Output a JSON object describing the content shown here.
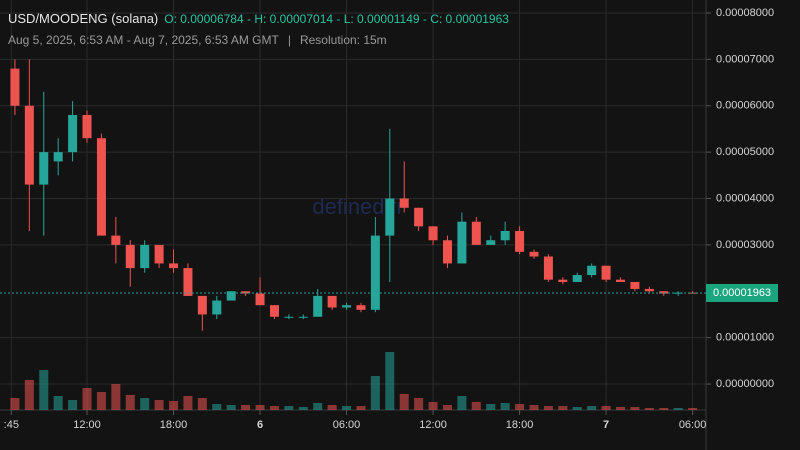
{
  "chart_data": {
    "type": "candlestick",
    "title": "USD/MOODENG (solana)",
    "ohlc_summary": "O: 0.00006784 - H: 0.00007014 - L: 0.00001149 - C: 0.00001963",
    "subtitle": "Aug 5, 2025, 6:53 AM - Aug 7, 2025, 6:53 AM GMT",
    "separator": "|",
    "resolution": "Resolution: 15m",
    "watermark": "defined.fi",
    "up_color": "#26a69a",
    "down_color": "#ef5350",
    "grid": true,
    "xlim": [
      6.52,
      54.93
    ],
    "xticks": [
      {
        "value": 6.75,
        "label": ":45"
      },
      {
        "value": 12,
        "label": "12:00"
      },
      {
        "value": 18,
        "label": "18:00"
      },
      {
        "value": 24,
        "label": "6"
      },
      {
        "value": 30,
        "label": "06:00"
      },
      {
        "value": 36,
        "label": "12:00"
      },
      {
        "value": 42,
        "label": "18:00"
      },
      {
        "value": 48,
        "label": "7"
      },
      {
        "value": 54,
        "label": "06:00"
      }
    ],
    "ylim": [
      -5.6e-06,
      8.28e-05
    ],
    "yticks": [
      {
        "value": 8e-05,
        "label": "0.00008000"
      },
      {
        "value": 7e-05,
        "label": "0.00007000"
      },
      {
        "value": 6e-05,
        "label": "0.00006000"
      },
      {
        "value": 5e-05,
        "label": "0.00005000"
      },
      {
        "value": 4e-05,
        "label": "0.00004000"
      },
      {
        "value": 3e-05,
        "label": "0.00003000"
      },
      {
        "value": 1e-05,
        "label": "0.00001000"
      },
      {
        "value": 0,
        "label": "0.00000000"
      }
    ],
    "last_price": {
      "value": 1.963e-05,
      "label": "0.00001963"
    },
    "x": [
      7,
      8,
      9,
      10,
      11,
      12,
      13,
      14,
      15,
      16,
      17,
      18,
      19,
      20,
      21,
      22,
      23,
      24,
      25,
      26,
      27,
      28,
      29,
      30,
      31,
      32,
      33,
      34,
      35,
      36,
      37,
      38,
      39,
      40,
      41,
      42,
      43,
      44,
      45,
      46,
      47,
      48,
      49,
      50,
      51,
      52,
      53,
      54
    ],
    "open": [
      6.8e-05,
      6e-05,
      4.3e-05,
      4.8e-05,
      5e-05,
      5.8e-05,
      5.3e-05,
      3.2e-05,
      3e-05,
      2.5e-05,
      3e-05,
      2.6e-05,
      2.5e-05,
      1.9e-05,
      1.5e-05,
      1.8e-05,
      2e-05,
      1.95e-05,
      1.7e-05,
      1.45e-05,
      1.45e-05,
      1.45e-05,
      1.9e-05,
      1.65e-05,
      1.7e-05,
      1.6e-05,
      3.2e-05,
      4e-05,
      3.8e-05,
      3.4e-05,
      3.1e-05,
      2.6e-05,
      3.5e-05,
      3e-05,
      3.1e-05,
      3.3e-05,
      2.85e-05,
      2.75e-05,
      2.25e-05,
      2.2e-05,
      2.35e-05,
      2.55e-05,
      2.25e-05,
      2.2e-05,
      2.05e-05,
      2e-05,
      1.95e-05,
      1.97e-05
    ],
    "high": [
      7e-05,
      7e-05,
      6.3e-05,
      5.3e-05,
      6.1e-05,
      5.9e-05,
      5.4e-05,
      3.6e-05,
      3.1e-05,
      3.1e-05,
      3e-05,
      2.9e-05,
      2.6e-05,
      1.9e-05,
      1.9e-05,
      2e-05,
      2e-05,
      2.3e-05,
      1.7e-05,
      1.5e-05,
      1.5e-05,
      2.05e-05,
      1.9e-05,
      1.75e-05,
      1.75e-05,
      3.6e-05,
      5.5e-05,
      4.8e-05,
      3.8e-05,
      3.4e-05,
      3.2e-05,
      3.7e-05,
      3.6e-05,
      3.2e-05,
      3.5e-05,
      3.4e-05,
      2.9e-05,
      2.8e-05,
      2.3e-05,
      2.4e-05,
      2.6e-05,
      2.55e-05,
      2.3e-05,
      2.2e-05,
      2.1e-05,
      2e-05,
      2e-05,
      2e-05
    ],
    "low": [
      5.8e-05,
      3.3e-05,
      3.2e-05,
      4.5e-05,
      4.8e-05,
      5.2e-05,
      3.2e-05,
      2.6e-05,
      2.1e-05,
      2.4e-05,
      2.5e-05,
      2.4e-05,
      1.9e-05,
      1.15e-05,
      1.4e-05,
      1.8e-05,
      1.9e-05,
      1.7e-05,
      1.4e-05,
      1.4e-05,
      1.4e-05,
      1.45e-05,
      1.6e-05,
      1.6e-05,
      1.55e-05,
      1.55e-05,
      2.2e-05,
      3.7e-05,
      3.3e-05,
      3e-05,
      2.5e-05,
      2.6e-05,
      3e-05,
      3e-05,
      3e-05,
      2.8e-05,
      2.7e-05,
      2.2e-05,
      2.15e-05,
      2.2e-05,
      2.3e-05,
      2.2e-05,
      2.2e-05,
      2e-05,
      1.95e-05,
      1.9e-05,
      1.9e-05,
      1.95e-05
    ],
    "close": [
      6e-05,
      4.3e-05,
      5e-05,
      5e-05,
      5.8e-05,
      5.3e-05,
      3.2e-05,
      3e-05,
      2.5e-05,
      3e-05,
      2.6e-05,
      2.5e-05,
      1.9e-05,
      1.5e-05,
      1.8e-05,
      2e-05,
      1.95e-05,
      1.7e-05,
      1.45e-05,
      1.45e-05,
      1.45e-05,
      1.9e-05,
      1.65e-05,
      1.7e-05,
      1.6e-05,
      3.2e-05,
      4e-05,
      3.8e-05,
      3.4e-05,
      3.1e-05,
      2.6e-05,
      3.5e-05,
      3e-05,
      3.1e-05,
      3.3e-05,
      2.85e-05,
      2.75e-05,
      2.25e-05,
      2.2e-05,
      2.35e-05,
      2.55e-05,
      2.25e-05,
      2.2e-05,
      2.05e-05,
      2e-05,
      1.95e-05,
      1.97e-05,
      1.963e-05
    ],
    "volume": [
      12,
      30,
      40,
      14,
      10,
      22,
      18,
      26,
      15,
      12,
      10,
      9,
      14,
      12,
      6,
      5,
      5,
      5,
      4,
      4,
      3,
      7,
      5,
      4,
      4,
      34,
      58,
      16,
      12,
      8,
      5,
      14,
      8,
      6,
      7,
      6,
      5,
      4,
      4,
      3,
      4,
      4,
      3,
      3,
      2,
      2,
      2,
      2
    ]
  }
}
